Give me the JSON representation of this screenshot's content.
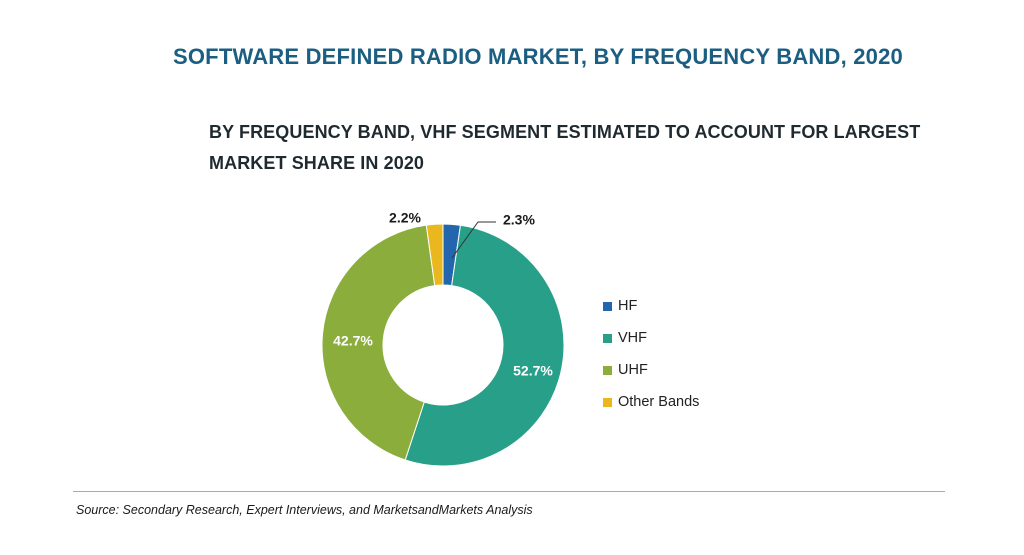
{
  "title": "SOFTWARE DEFINED RADIO MARKET, BY FREQUENCY BAND, 2020",
  "subtitle": "BY FREQUENCY BAND, VHF SEGMENT ESTIMATED TO ACCOUNT FOR LARGEST MARKET SHARE IN 2020",
  "chart_data": {
    "type": "pie",
    "variant": "donut",
    "categories": [
      "HF",
      "VHF",
      "UHF",
      "Other Bands"
    ],
    "values": [
      2.3,
      52.7,
      42.7,
      2.2
    ],
    "labels": [
      "2.3%",
      "52.7%",
      "42.7%",
      "2.2%"
    ],
    "colors": [
      "#2466ad",
      "#28a089",
      "#8aad3c",
      "#eab81e"
    ],
    "legend_position": "right"
  },
  "source": "Source: Secondary Research, Expert Interviews, and MarketsandMarkets Analysis"
}
